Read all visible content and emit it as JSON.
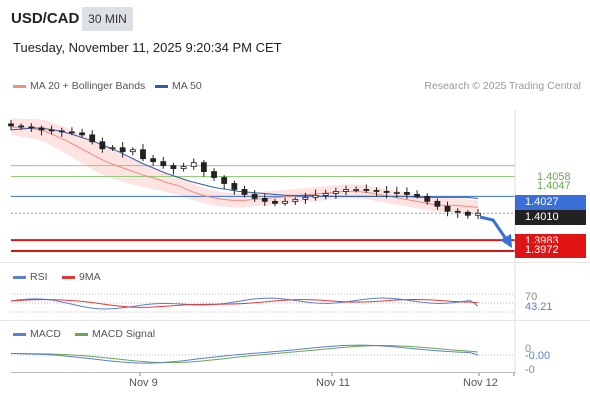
{
  "header": {
    "symbol": "USD/CAD",
    "interval": "30 MIN",
    "datetime": "Tuesday, November 11, 2025 9:20:34 PM CET"
  },
  "price_panel": {
    "legend": [
      {
        "label": "MA 20 + Bollinger Bands",
        "color": "#f28b82"
      },
      {
        "label": "MA 50",
        "color": "#2d5ea8"
      }
    ],
    "credit": "Research © 2025 Trading Central",
    "levels": {
      "resistance_1": "1.4058",
      "resistance_2": "1.4047",
      "pivot": "1.4027",
      "last": "1.4010",
      "support_1": "1.3983",
      "support_2": "1.3972"
    }
  },
  "rsi_panel": {
    "legend": [
      {
        "label": "RSI",
        "color": "#5b7fd6"
      },
      {
        "label": "9MA",
        "color": "#e53935"
      }
    ],
    "level_70": "70",
    "value": "43.21"
  },
  "macd_panel": {
    "legend": [
      {
        "label": "MACD",
        "color": "#5b7fd6"
      },
      {
        "label": "MACD Signal",
        "color": "#6aa84f"
      }
    ],
    "level_0": "0",
    "value": "-0.00",
    "level_neg": "-0"
  },
  "x_axis": {
    "ticks": [
      "Nov 9",
      "Nov 11",
      "Nov 12"
    ]
  },
  "colors": {
    "pivot_blue": "#3a6fd8",
    "support_red": "#e01414",
    "resistance_green": "#8fce7a",
    "bollinger_fill": "#fde3e1",
    "ma20": "#f28b82",
    "ma50": "#2d5ea8",
    "candle_up": "#f5f5f5",
    "candle_down": "#222222"
  },
  "chart_data": {
    "type": "line",
    "instrument": "USD/CAD",
    "timeframe": "30 MIN",
    "x_ticks": [
      "Nov 9",
      "Nov 11",
      "Nov 12"
    ],
    "price_close": [
      1.4098,
      1.4097,
      1.4096,
      1.4094,
      1.4093,
      1.4092,
      1.4091,
      1.4089,
      1.4082,
      1.4075,
      1.4076,
      1.4072,
      1.4074,
      1.4065,
      1.4062,
      1.4058,
      1.4055,
      1.4057,
      1.4061,
      1.4052,
      1.4046,
      1.404,
      1.4034,
      1.4029,
      1.4025,
      1.4022,
      1.402,
      1.4022,
      1.4024,
      1.4026,
      1.4028,
      1.403,
      1.4032,
      1.4034,
      1.4034,
      1.4033,
      1.4032,
      1.4031,
      1.4031,
      1.4029,
      1.4027,
      1.4022,
      1.4017,
      1.4012,
      1.4011,
      1.4008,
      1.401
    ],
    "ma20": [
      1.4097,
      1.4096,
      1.4095,
      1.4093,
      1.4088,
      1.4083,
      1.4077,
      1.4071,
      1.4065,
      1.406,
      1.4056,
      1.4052,
      1.4048,
      1.4045,
      1.4041,
      1.4038,
      1.4033,
      1.4029,
      1.4026,
      1.4024,
      1.4023,
      1.4023,
      1.4024,
      1.4025,
      1.4026,
      1.4027,
      1.4028,
      1.4029,
      1.403,
      1.4031,
      1.4032,
      1.4032,
      1.4031,
      1.4029,
      1.4027,
      1.4025,
      1.4023,
      1.4021,
      1.4019,
      1.4018,
      1.4018,
      1.4017,
      1.4016
    ],
    "ma50": [
      1.4094,
      1.4095,
      1.4096,
      1.4095,
      1.4093,
      1.409,
      1.4086,
      1.4082,
      1.4077,
      1.4072,
      1.4066,
      1.406,
      1.4055,
      1.405,
      1.4046,
      1.4042,
      1.4039,
      1.4036,
      1.4034,
      1.4032,
      1.4031,
      1.403,
      1.4029,
      1.4028,
      1.4028,
      1.4028,
      1.4027,
      1.4027,
      1.4027,
      1.4027,
      1.4027,
      1.4027,
      1.4027,
      1.4027,
      1.4026,
      1.4026,
      1.4026,
      1.4026,
      1.4026,
      1.4025
    ],
    "rsi_value": 43.21,
    "macd_value": -0.0,
    "levels": [
      1.4058,
      1.4047,
      1.4027,
      1.401,
      1.3983,
      1.3972
    ]
  }
}
